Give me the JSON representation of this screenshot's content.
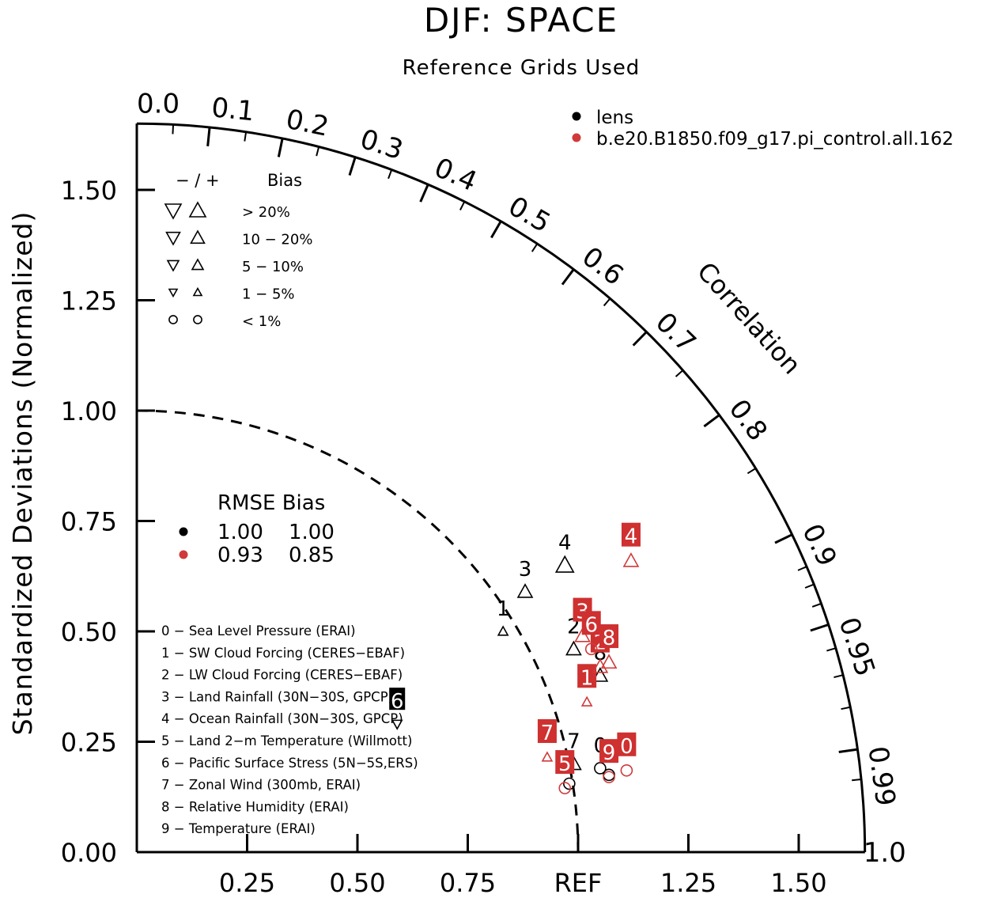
{
  "chart_data": {
    "type": "scatter",
    "subtype": "taylor-diagram",
    "title": "DJF: SPACE",
    "subtitle": "Reference Grids Used",
    "ylabel": "Standardized Deviations (Normalized)",
    "arc_label": "Correlation",
    "ref_label": "REF",
    "x_ticks": [
      "0.25",
      "0.50",
      "0.75",
      "1.25",
      "1.50"
    ],
    "y_ticks": [
      "0.00",
      "0.25",
      "0.50",
      "0.75",
      "1.00",
      "1.25",
      "1.50"
    ],
    "corr_ticks": [
      "0.0",
      "0.1",
      "0.2",
      "0.3",
      "0.4",
      "0.5",
      "0.6",
      "0.7",
      "0.8",
      "0.9",
      "0.95",
      "0.99",
      "1.0"
    ],
    "ylim": [
      0,
      1.65
    ],
    "legend": [
      {
        "name": "lens",
        "color": "#000000"
      },
      {
        "name": "b.e20.B1850.f09_g17.pi_control.all.162",
        "color": "#d03a3a"
      }
    ],
    "bias_legend": {
      "header_sign": "−  /  +",
      "header_label": "Bias",
      "rows": [
        "> 20%",
        "10 − 20%",
        "5 − 10%",
        "1 − 5%",
        "< 1%"
      ]
    },
    "rmse_table": {
      "header": "RMSE Bias",
      "rows": [
        {
          "color": "#000000",
          "rmse": "1.00",
          "bias": "1.00"
        },
        {
          "color": "#d03a3a",
          "rmse": "0.93",
          "bias": "0.85"
        }
      ]
    },
    "variables": [
      "0 − Sea Level Pressure (ERAI)",
      "1 − SW Cloud Forcing (CERES−EBAF)",
      "2 − LW Cloud Forcing (CERES−EBAF)",
      "3 − Land Rainfall (30N−30S, GPCP)",
      "4 − Ocean Rainfall (30N−30S, GPCP)",
      "5 − Land 2−m Temperature (Willmott)",
      "6 − Pacific Surface Stress (5N−5S,ERS)",
      "7 − Zonal Wind (300mb, ERAI)",
      "8 − Relative Humidity (ERAI)",
      "9 − Temperature (ERAI)"
    ],
    "series": [
      {
        "name": "lens",
        "points": [
          {
            "id": "0",
            "x": 1.05,
            "y": 0.19,
            "marker": "circle"
          },
          {
            "id": "1",
            "x": 0.83,
            "y": 0.5,
            "marker": "up-tri-s"
          },
          {
            "id": "2",
            "x": 0.99,
            "y": 0.46,
            "marker": "up-tri-m"
          },
          {
            "id": "3",
            "x": 0.88,
            "y": 0.59,
            "marker": "up-tri-m"
          },
          {
            "id": "4",
            "x": 0.97,
            "y": 0.65,
            "marker": "up-tri-l"
          },
          {
            "id": "5",
            "x": 0.98,
            "y": 0.155,
            "marker": "circle"
          },
          {
            "id": "6",
            "x": 0.59,
            "y": 0.29,
            "marker": "down-tri-s"
          },
          {
            "id": "7",
            "x": 0.99,
            "y": 0.2,
            "marker": "up-tri-m"
          },
          {
            "id": "8",
            "x": 1.05,
            "y": 0.4,
            "marker": "up-tri-m"
          },
          {
            "id": "9",
            "x": 1.07,
            "y": 0.175,
            "marker": "circle"
          }
        ]
      },
      {
        "name": "b.e20.B1850.f09_g17.pi_control.all.162",
        "points": [
          {
            "id": "0",
            "x": 1.11,
            "y": 0.185,
            "marker": "circle"
          },
          {
            "id": "1",
            "x": 1.02,
            "y": 0.34,
            "marker": "up-tri-s"
          },
          {
            "id": "2",
            "x": 1.05,
            "y": 0.42,
            "marker": "up-tri-m"
          },
          {
            "id": "3",
            "x": 1.01,
            "y": 0.49,
            "marker": "up-tri-m"
          },
          {
            "id": "4",
            "x": 1.12,
            "y": 0.66,
            "marker": "up-tri-m"
          },
          {
            "id": "5",
            "x": 0.97,
            "y": 0.145,
            "marker": "circle"
          },
          {
            "id": "6",
            "x": 1.03,
            "y": 0.46,
            "marker": "circle"
          },
          {
            "id": "7",
            "x": 0.93,
            "y": 0.215,
            "marker": "up-tri-s"
          },
          {
            "id": "8",
            "x": 1.07,
            "y": 0.43,
            "marker": "up-tri-m"
          },
          {
            "id": "9",
            "x": 1.07,
            "y": 0.17,
            "marker": "circle"
          }
        ]
      }
    ]
  },
  "colors": {
    "series_black": "#000000",
    "series_red": "#d03a3a",
    "label_box_red": "#cf3030"
  }
}
